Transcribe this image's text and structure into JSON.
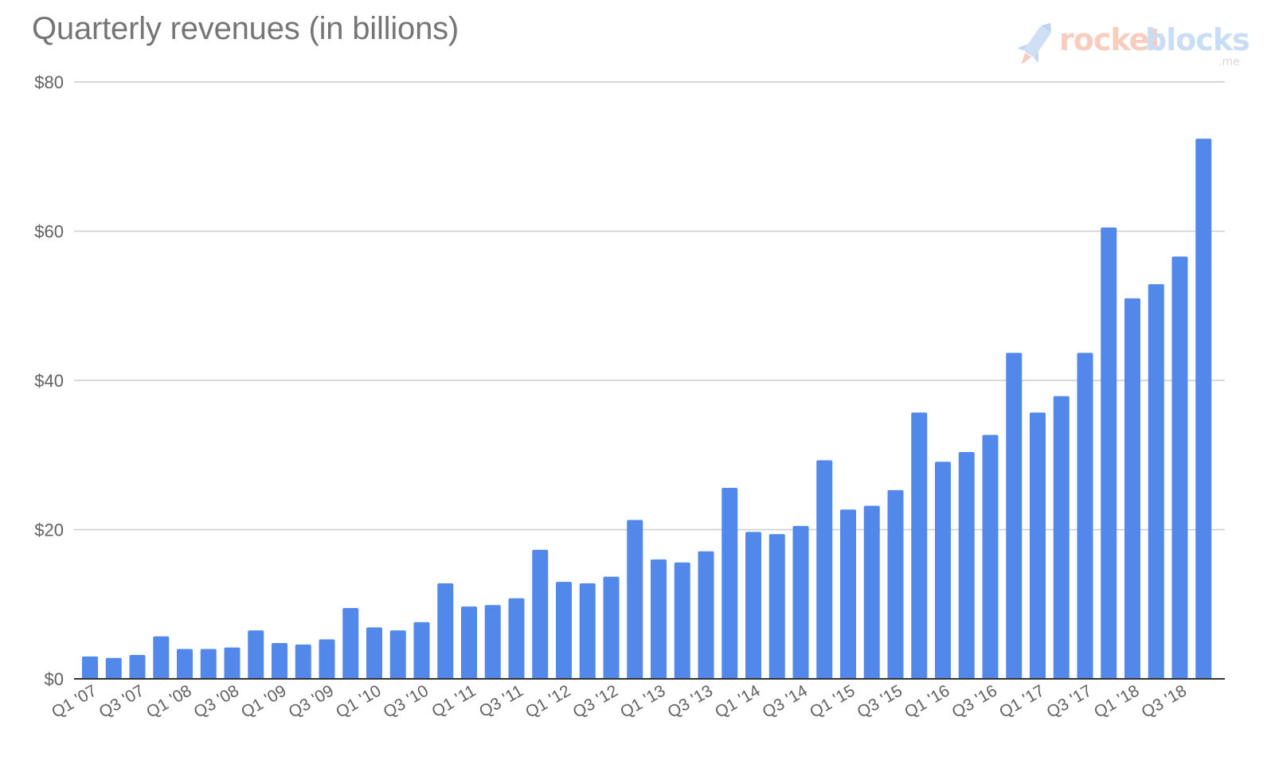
{
  "chart_data": {
    "type": "bar",
    "title": "Quarterly revenues (in billions)",
    "xlabel": "",
    "ylabel": "",
    "ylim": [
      0,
      80
    ],
    "y_ticks": [
      0,
      20,
      40,
      60,
      80
    ],
    "y_tick_labels": [
      "$0",
      "$20",
      "$40",
      "$60",
      "$80"
    ],
    "grid": true,
    "legend": "none",
    "bar_color": "#5188ea",
    "categories": [
      "Q1 '07",
      "Q2 '07",
      "Q3 '07",
      "Q4 '07",
      "Q1 '08",
      "Q2 '08",
      "Q3 '08",
      "Q4 '08",
      "Q1 '09",
      "Q2 '09",
      "Q3 '09",
      "Q4 '09",
      "Q1 '10",
      "Q2 '10",
      "Q3 '10",
      "Q4 '10",
      "Q1 '11",
      "Q2 '11",
      "Q3 '11",
      "Q4 '11",
      "Q1 '12",
      "Q2 '12",
      "Q3 '12",
      "Q4 '12",
      "Q1 '13",
      "Q2 '13",
      "Q3 '13",
      "Q4 '13",
      "Q1 '14",
      "Q2 '14",
      "Q3 '14",
      "Q4 '14",
      "Q1 '15",
      "Q2 '15",
      "Q3 '15",
      "Q4 '15",
      "Q1 '16",
      "Q2 '16",
      "Q3 '16",
      "Q4 '16",
      "Q1 '17",
      "Q2 '17",
      "Q3 '17",
      "Q4 '17",
      "Q1 '18",
      "Q2 '18",
      "Q3 '18",
      "Q4 '18"
    ],
    "x_tick_labels": [
      "Q1 '07",
      "Q3 '07",
      "Q1 '08",
      "Q3 '08",
      "Q1 '09",
      "Q3 '09",
      "Q1 '10",
      "Q3 '10",
      "Q1 '11",
      "Q3 '11",
      "Q1 '12",
      "Q3 '12",
      "Q1 '13",
      "Q3 '13",
      "Q1 '14",
      "Q3 '14",
      "Q1 '15",
      "Q3 '15",
      "Q1 '16",
      "Q3 '16",
      "Q1 '17",
      "Q3 '17",
      "Q1 '18",
      "Q3 '18"
    ],
    "values": [
      3.0,
      2.8,
      3.2,
      5.7,
      4.0,
      4.0,
      4.2,
      6.5,
      4.8,
      4.6,
      5.3,
      9.5,
      6.9,
      6.5,
      7.6,
      12.8,
      9.7,
      9.9,
      10.8,
      17.3,
      13.0,
      12.8,
      13.7,
      21.3,
      16.0,
      15.6,
      17.1,
      25.6,
      19.7,
      19.4,
      20.5,
      29.3,
      22.7,
      23.2,
      25.3,
      35.7,
      29.1,
      30.4,
      32.7,
      43.7,
      35.7,
      37.9,
      43.7,
      60.5,
      51.0,
      52.9,
      56.6,
      72.4
    ]
  },
  "watermark": {
    "word1": "rocket",
    "word2": "blocks",
    "suffix": ".me"
  }
}
